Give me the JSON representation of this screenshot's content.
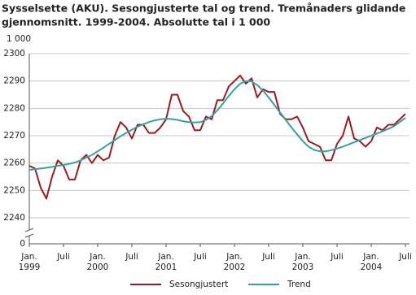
{
  "chart_data": {
    "type": "line",
    "title": "Sysselsette (AKU).  Sesongjusterte tal og trend. Tremånaders glidande",
    "subtitle": "gjennomsnitt. 1999-2004. Absolutte tal i 1 000",
    "y_unit_label": "1 000",
    "categories": [
      "Jan. 1999",
      null,
      null,
      null,
      null,
      null,
      "Juli",
      null,
      null,
      null,
      null,
      null,
      "Jan. 2000",
      null,
      null,
      null,
      null,
      null,
      "Juli",
      null,
      null,
      null,
      null,
      null,
      "Jan. 2001",
      null,
      null,
      null,
      null,
      null,
      "Juli",
      null,
      null,
      null,
      null,
      null,
      "Jan. 2002",
      null,
      null,
      null,
      null,
      null,
      "Juli",
      null,
      null,
      null,
      null,
      null,
      "Jan. 2003",
      null,
      null,
      null,
      null,
      null,
      "Juli",
      null,
      null,
      null,
      null,
      null,
      "Jan. 2004",
      null,
      null,
      null,
      null,
      null,
      "Juli"
    ],
    "series": [
      {
        "name": "Sesongjustert",
        "color": "#9b1c1f",
        "values": [
          2259,
          2258,
          2251,
          2247,
          2255,
          2261,
          2259,
          2254,
          2254,
          2261,
          2263,
          2260,
          2263,
          2261,
          2262,
          2270,
          2275,
          2273,
          2269,
          2274,
          2274,
          2271,
          2271,
          2273,
          2276,
          2285,
          2285,
          2279,
          2277,
          2272,
          2272,
          2277,
          2276,
          2283,
          2283,
          2288,
          2290,
          2292,
          2289,
          2291,
          2284,
          2287,
          2286,
          2286,
          2278,
          2276,
          2276,
          2277,
          2273,
          2268,
          2267,
          2266,
          2261,
          2261,
          2267,
          2270,
          2277,
          2269,
          2268,
          2266,
          2268,
          2273,
          2272,
          2274,
          2274,
          2276,
          2278
        ]
      },
      {
        "name": "Trend",
        "color": "#35a39b",
        "values": [
          2257.5,
          2257.8,
          2258,
          2258.3,
          2258.6,
          2259,
          2259.3,
          2259.7,
          2260.2,
          2261,
          2262,
          2263,
          2264.3,
          2265.6,
          2267,
          2268.4,
          2269.8,
          2271,
          2272.2,
          2273.3,
          2274.2,
          2275,
          2275.6,
          2276,
          2276.2,
          2276.1,
          2275.8,
          2275.3,
          2275,
          2274.8,
          2275,
          2275.8,
          2277.2,
          2279.3,
          2281.8,
          2284.5,
          2287,
          2289,
          2290,
          2289.8,
          2288.5,
          2286.5,
          2284,
          2281.3,
          2278.5,
          2275.8,
          2273,
          2270.5,
          2268,
          2266,
          2264.8,
          2264.3,
          2264.3,
          2264.7,
          2265.3,
          2266,
          2266.8,
          2267.6,
          2268.4,
          2269.2,
          2270,
          2270.8,
          2271.6,
          2272.5,
          2273.5,
          2275,
          2276.5
        ]
      }
    ],
    "ylim": [
      2240,
      2300
    ],
    "yticks": [
      2240,
      2250,
      2260,
      2270,
      2280,
      2290,
      2300
    ],
    "axis_break_tick": 0,
    "grid": true
  }
}
